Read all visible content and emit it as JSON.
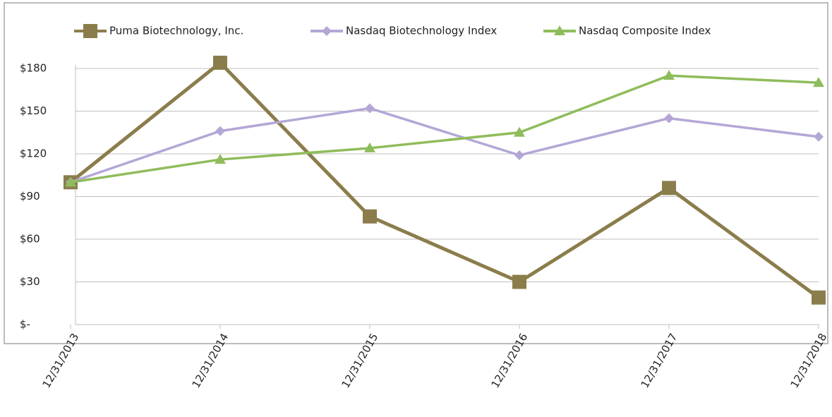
{
  "chart_data": {
    "type": "line",
    "categories": [
      "12/31/2013",
      "12/31/2014",
      "12/31/2015",
      "12/31/2016",
      "12/31/2017",
      "12/31/2018"
    ],
    "series": [
      {
        "name": "Puma Biotechnology, Inc.",
        "color": "#8b7d4b",
        "marker": "square",
        "values": [
          100,
          184,
          76,
          30,
          96,
          19
        ]
      },
      {
        "name": "Nasdaq Biotechnology Index",
        "color": "#b4a7d6",
        "marker": "diamond",
        "values": [
          100,
          136,
          152,
          119,
          145,
          132
        ]
      },
      {
        "name": "Nasdaq Composite Index",
        "color": "#8fbc5a",
        "marker": "triangle",
        "values": [
          100,
          116,
          124,
          135,
          175,
          170
        ]
      }
    ],
    "ylim": [
      0,
      180
    ],
    "yticks": [
      {
        "value": 0,
        "label": "$-"
      },
      {
        "value": 30,
        "label": "$30"
      },
      {
        "value": 60,
        "label": "$60"
      },
      {
        "value": 90,
        "label": "$90"
      },
      {
        "value": 120,
        "label": "$120"
      },
      {
        "value": 150,
        "label": "$150"
      },
      {
        "value": 180,
        "label": "$180"
      }
    ],
    "grid": true,
    "legend": "top"
  }
}
